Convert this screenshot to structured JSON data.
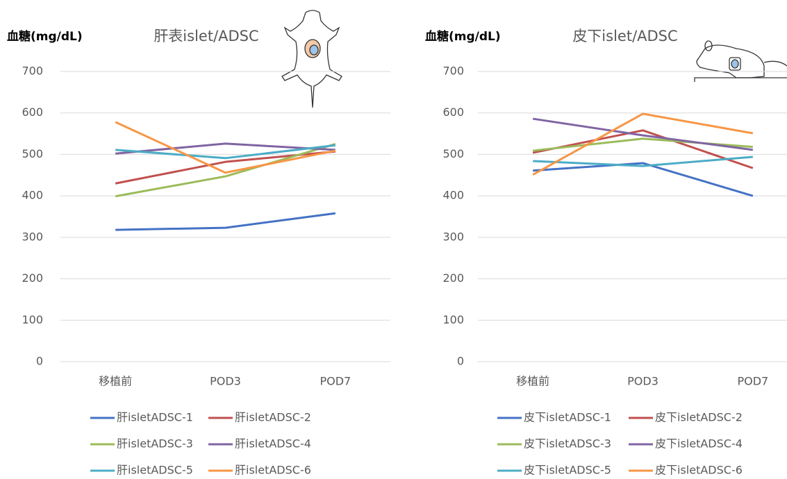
{
  "chart_data": [
    {
      "type": "line",
      "title": "肝表islet/ADSC",
      "y_axis_label": "血糖(mg/dL)",
      "categories": [
        "移植前",
        "POD3",
        "POD7"
      ],
      "ylim": [
        0,
        700
      ],
      "yticks": [
        0,
        100,
        200,
        300,
        400,
        500,
        600,
        700
      ],
      "grid": true,
      "series": [
        {
          "name": "肝isletADSC-1",
          "color": "#4472c4",
          "values": [
            318,
            323,
            358
          ]
        },
        {
          "name": "肝isletADSC-2",
          "color": "#c0504d",
          "values": [
            430,
            482,
            507
          ]
        },
        {
          "name": "肝isletADSC-3",
          "color": "#9bbb59",
          "values": [
            399,
            447,
            525
          ]
        },
        {
          "name": "肝isletADSC-4",
          "color": "#8064a2",
          "values": [
            502,
            526,
            511
          ]
        },
        {
          "name": "肝isletADSC-5",
          "color": "#4bacc6",
          "values": [
            511,
            491,
            522
          ]
        },
        {
          "name": "肝isletADSC-6",
          "color": "#f79646",
          "values": [
            578,
            456,
            509
          ]
        }
      ]
    },
    {
      "type": "line",
      "title": "皮下islet/ADSC",
      "y_axis_label": "血糖(mg/dL)",
      "categories": [
        "移植前",
        "POD3",
        "POD7"
      ],
      "ylim": [
        0,
        700
      ],
      "yticks": [
        0,
        100,
        200,
        300,
        400,
        500,
        600,
        700
      ],
      "grid": true,
      "series": [
        {
          "name": "皮下isletADSC-1",
          "color": "#4472c4",
          "values": [
            461,
            479,
            400
          ]
        },
        {
          "name": "皮下isletADSC-2",
          "color": "#c0504d",
          "values": [
            504,
            558,
            467
          ]
        },
        {
          "name": "皮下isletADSC-3",
          "color": "#9bbb59",
          "values": [
            509,
            538,
            518
          ]
        },
        {
          "name": "皮下isletADSC-4",
          "color": "#8064a2",
          "values": [
            586,
            546,
            511
          ]
        },
        {
          "name": "皮下isletADSC-5",
          "color": "#4bacc6",
          "values": [
            484,
            472,
            494
          ]
        },
        {
          "name": "皮下isletADSC-6",
          "color": "#f79646",
          "values": [
            451,
            598,
            551
          ]
        }
      ]
    }
  ]
}
